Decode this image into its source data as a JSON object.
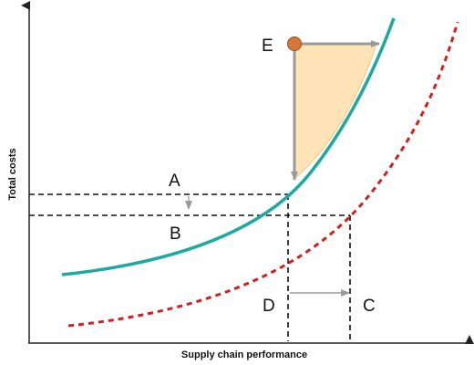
{
  "axes": {
    "x_title": "Supply chain performance",
    "y_title": "Total costs"
  },
  "points": {
    "A": "A",
    "B": "B",
    "C": "C",
    "D": "D",
    "E": "E"
  },
  "colors": {
    "current_curve": "#1ea9a0",
    "improved_curve": "#d21f1f",
    "shaded_region": "#fde3b5",
    "shaded_region_border": "#f5c878",
    "arrow": "#9a9a9a",
    "point_marker": "#d7763a",
    "guide_line": "#111111",
    "axis": "#222222"
  },
  "legend_items": [
    {
      "id": "current_curve",
      "style": "solid",
      "color_key": "current_curve"
    },
    {
      "id": "improved_curve",
      "style": "dashed",
      "color_key": "improved_curve"
    }
  ]
}
